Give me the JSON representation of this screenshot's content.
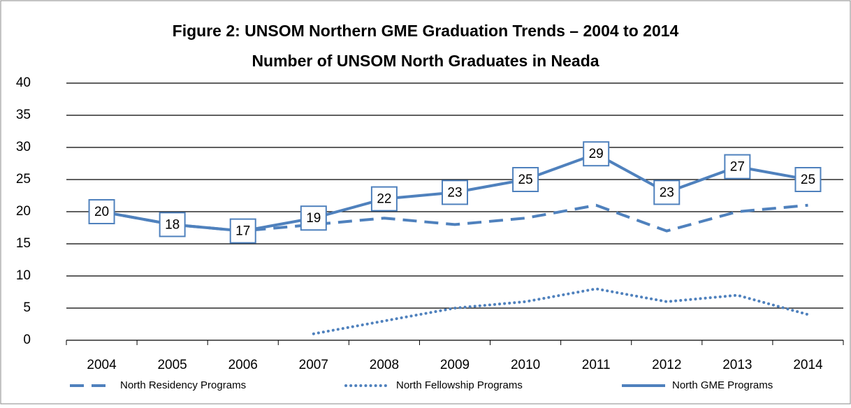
{
  "chart_data": {
    "type": "line",
    "title": "Figure 2: UNSOM Northern GME Graduation Trends – 2004 to 2014",
    "subtitle": "Number of UNSOM North Graduates in Neada",
    "categories": [
      "2004",
      "2005",
      "2006",
      "2007",
      "2008",
      "2009",
      "2010",
      "2011",
      "2012",
      "2013",
      "2014"
    ],
    "series": [
      {
        "name": "North Residency Programs",
        "color": "#4f81bd",
        "style": "dashed",
        "values": [
          20,
          18,
          17,
          18,
          19,
          18,
          19,
          21,
          17,
          20,
          21
        ]
      },
      {
        "name": "North Fellowship Programs",
        "color": "#4f81bd",
        "style": "dotted",
        "values": [
          null,
          null,
          null,
          1,
          3,
          5,
          6,
          8,
          6,
          7,
          4
        ]
      },
      {
        "name": "North GME Programs",
        "color": "#4f81bd",
        "style": "solid",
        "data_labels": true,
        "values": [
          20,
          18,
          17,
          19,
          22,
          23,
          25,
          29,
          23,
          27,
          25
        ]
      }
    ],
    "ylim": [
      0,
      40
    ],
    "yticks": [
      0,
      5,
      10,
      15,
      20,
      25,
      30,
      35,
      40
    ],
    "grid": true,
    "legend": "bottom"
  }
}
